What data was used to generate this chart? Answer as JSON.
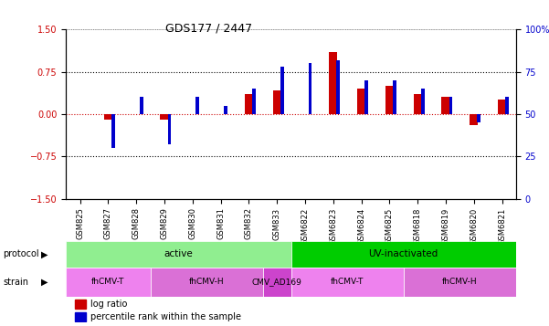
{
  "title": "GDS177 / 2447",
  "samples": [
    "GSM825",
    "GSM827",
    "GSM828",
    "GSM829",
    "GSM830",
    "GSM831",
    "GSM832",
    "GSM833",
    "GSM6822",
    "GSM6823",
    "GSM6824",
    "GSM6825",
    "GSM6818",
    "GSM6819",
    "GSM6820",
    "GSM6821"
  ],
  "log_ratio": [
    0.0,
    -0.1,
    0.0,
    -0.1,
    0.0,
    0.0,
    0.35,
    0.42,
    0.0,
    1.1,
    0.45,
    0.5,
    0.35,
    0.3,
    -0.2,
    0.25
  ],
  "percentile_rank": [
    50,
    30,
    60,
    32,
    60,
    55,
    65,
    78,
    80,
    82,
    70,
    70,
    65,
    60,
    45,
    60
  ],
  "protocol_groups": [
    {
      "label": "active",
      "start": 0,
      "end": 8,
      "color": "#90EE90"
    },
    {
      "label": "UV-inactivated",
      "start": 8,
      "end": 16,
      "color": "#00CC00"
    }
  ],
  "strain_groups": [
    {
      "label": "fhCMV-T",
      "start": 0,
      "end": 3,
      "color": "#EE82EE"
    },
    {
      "label": "fhCMV-H",
      "start": 3,
      "end": 7,
      "color": "#DA70D6"
    },
    {
      "label": "CMV_AD169",
      "start": 7,
      "end": 8,
      "color": "#CC44CC"
    },
    {
      "label": "fhCMV-T",
      "start": 8,
      "end": 12,
      "color": "#EE82EE"
    },
    {
      "label": "fhCMV-H",
      "start": 12,
      "end": 16,
      "color": "#DA70D6"
    }
  ],
  "ylim_left": [
    -1.5,
    1.5
  ],
  "ylim_right": [
    0,
    100
  ],
  "yticks_left": [
    -1.5,
    -0.75,
    0,
    0.75,
    1.5
  ],
  "yticks_right": [
    0,
    25,
    50,
    75,
    100
  ],
  "bar_color_red": "#CC0000",
  "bar_color_blue": "#0000CC",
  "dotted_line_color": "#000000",
  "zero_line_color": "#CC0000",
  "legend_red": "log ratio",
  "legend_blue": "percentile rank within the sample"
}
